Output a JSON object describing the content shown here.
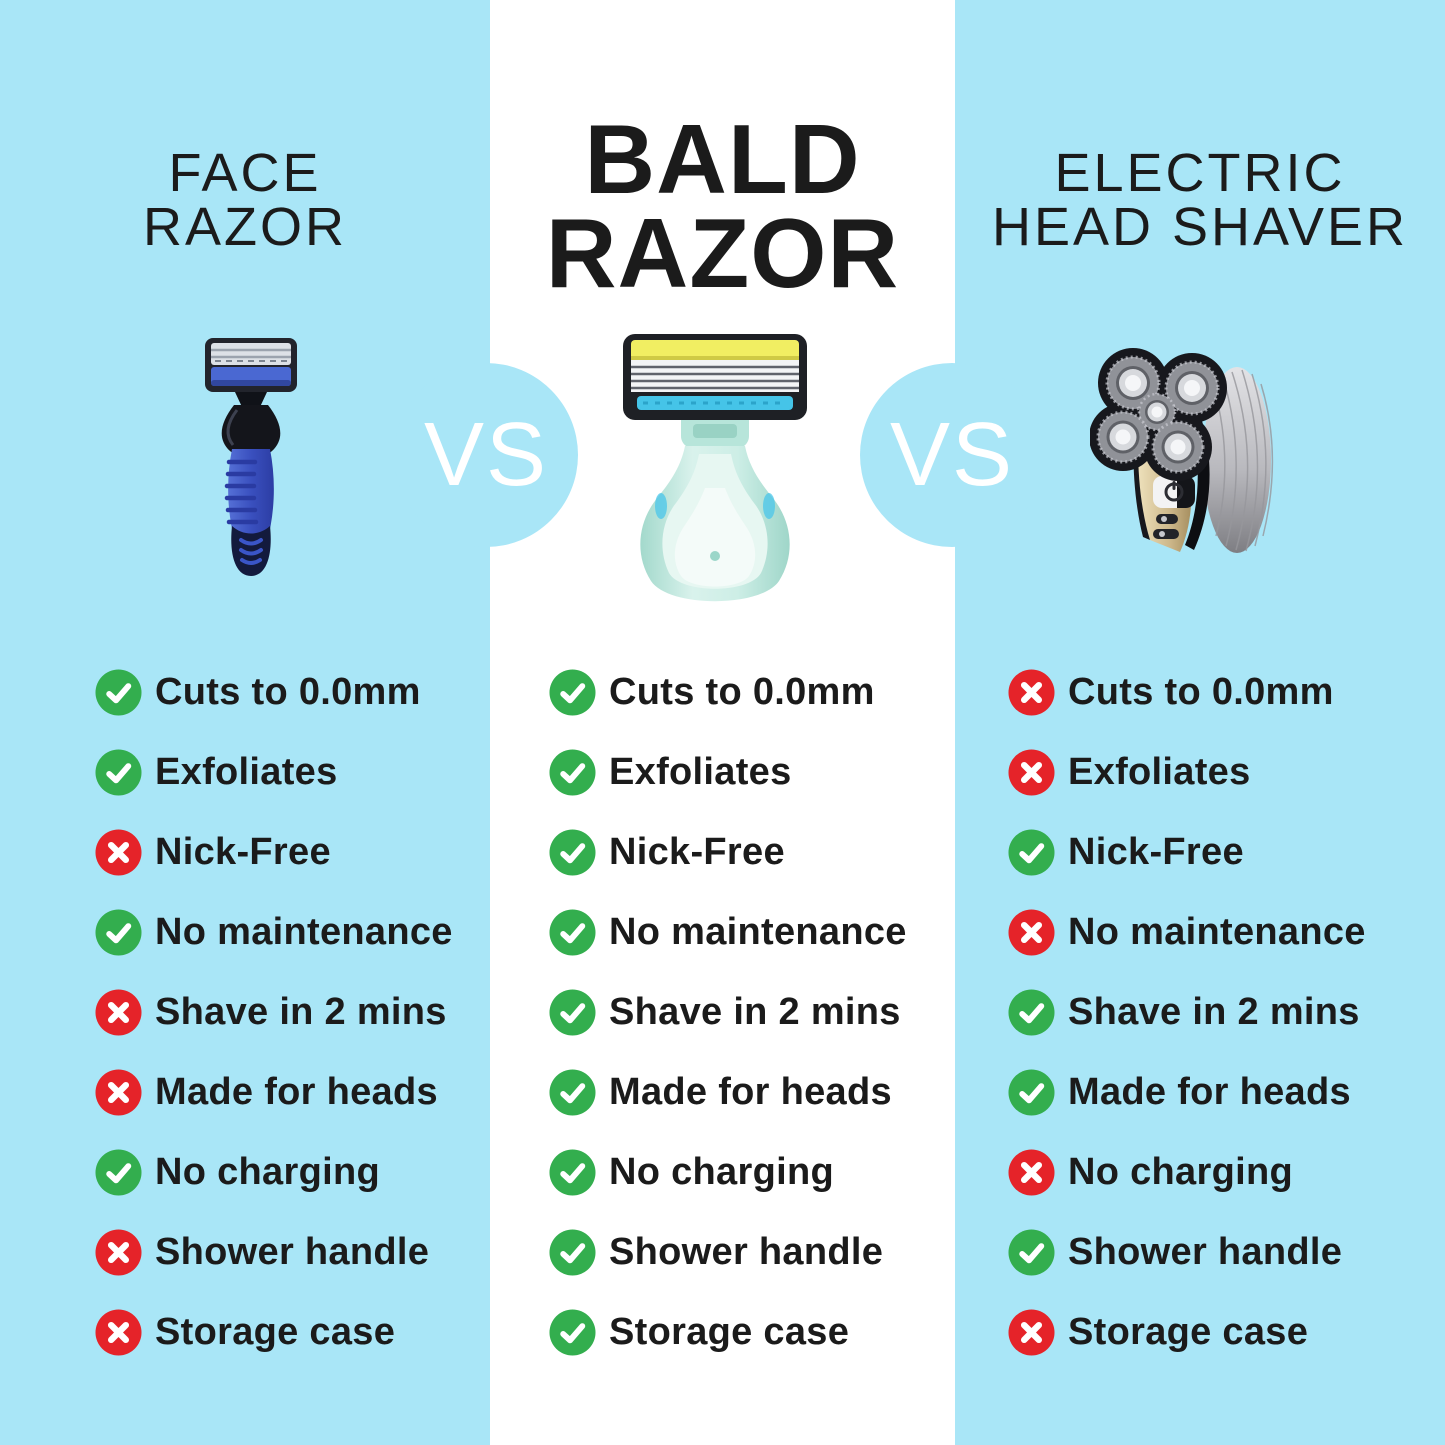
{
  "vs_label": "VS",
  "colors": {
    "background_blue": "#a9e6f7",
    "panel_white": "#ffffff",
    "check_green": "#33ae4e",
    "cross_red": "#e52329",
    "text_black": "#1b1b1b",
    "vs_text": "#ffffff"
  },
  "features": [
    "Cuts to 0.0mm",
    "Exfoliates",
    "Nick-Free",
    "No maintenance",
    "Shave in 2 mins",
    "Made for heads",
    "No charging",
    "Shower handle",
    "Storage case"
  ],
  "columns": [
    {
      "id": "face-razor",
      "title_lines": [
        "FACE",
        "RAZOR"
      ],
      "product_image": "blue-face-razor",
      "checks": [
        true,
        true,
        false,
        true,
        false,
        false,
        true,
        false,
        false
      ]
    },
    {
      "id": "bald-razor",
      "title_lines": [
        "BALD",
        "RAZOR"
      ],
      "product_image": "mint-bald-razor",
      "checks": [
        true,
        true,
        true,
        true,
        true,
        true,
        true,
        true,
        true
      ]
    },
    {
      "id": "electric-head-shaver",
      "title_lines": [
        "ELECTRIC",
        "HEAD SHAVER"
      ],
      "product_image": "electric-head-shaver",
      "checks": [
        false,
        false,
        true,
        false,
        true,
        true,
        false,
        true,
        false
      ]
    }
  ]
}
